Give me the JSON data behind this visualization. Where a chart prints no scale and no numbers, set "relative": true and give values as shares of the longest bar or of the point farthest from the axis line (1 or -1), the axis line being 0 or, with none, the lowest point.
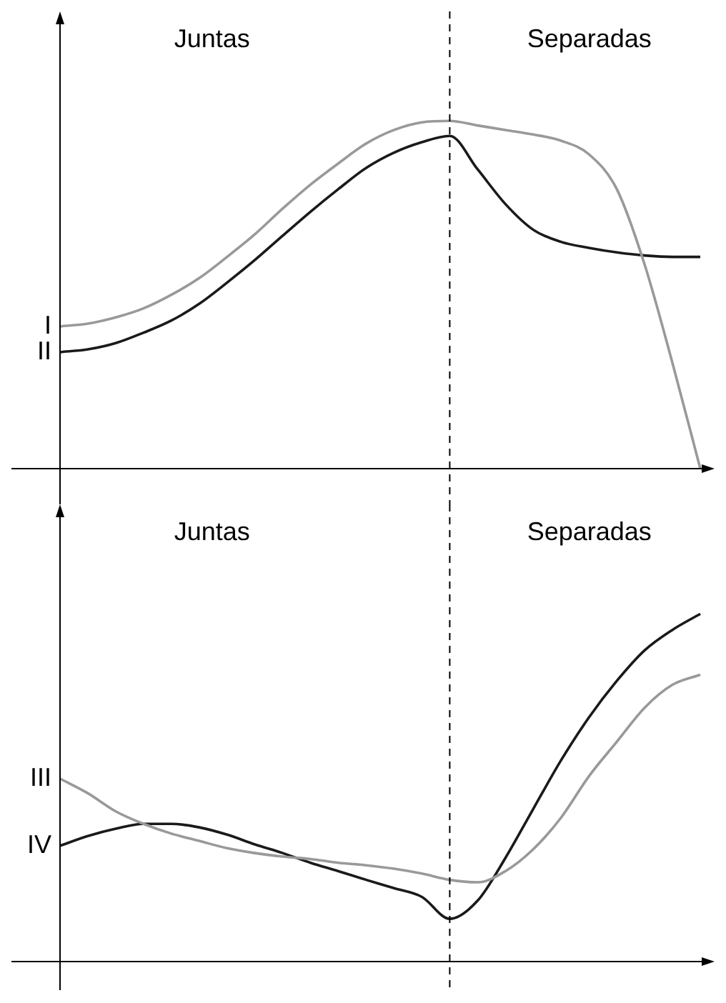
{
  "chart_data": [
    {
      "type": "line",
      "relative": true,
      "categories": [
        null,
        null,
        null,
        null,
        null,
        null,
        null,
        null,
        null,
        null,
        null,
        null,
        null,
        null,
        null,
        null,
        null,
        null,
        null,
        null,
        null,
        null,
        null,
        null
      ],
      "series": [
        {
          "name": "I",
          "color": "#999999",
          "values": [
            0.409,
            0.417,
            0.435,
            0.461,
            0.5,
            0.548,
            0.609,
            0.674,
            0.748,
            0.817,
            0.878,
            0.935,
            0.974,
            0.996,
            1,
            0.987,
            0.974,
            0.961,
            0.943,
            0.904,
            0.804,
            0.587,
            0.304,
            0
          ]
        },
        {
          "name": "II",
          "color": "#1a1a1a",
          "values": [
            0.335,
            0.343,
            0.361,
            0.391,
            0.426,
            0.474,
            0.535,
            0.6,
            0.67,
            0.739,
            0.804,
            0.865,
            0.909,
            0.939,
            0.957,
            0.861,
            0.761,
            0.687,
            0.652,
            0.635,
            0.622,
            0.613,
            0.609,
            0.609
          ]
        }
      ],
      "annotations": [
        "Juntas",
        "Separadas"
      ],
      "legend": false,
      "marker": "none",
      "line_style": "solid"
    },
    {
      "type": "line",
      "relative": true,
      "categories": [
        null,
        null,
        null,
        null,
        null,
        null,
        null,
        null,
        null,
        null,
        null,
        null,
        null,
        null,
        null,
        null,
        null,
        null,
        null,
        null,
        null,
        null,
        null,
        null
      ],
      "series": [
        {
          "name": "III",
          "color": "#999999",
          "values": [
            0.526,
            0.484,
            0.432,
            0.396,
            0.368,
            0.347,
            0.326,
            0.312,
            0.302,
            0.295,
            0.284,
            0.277,
            0.267,
            0.253,
            0.235,
            0.228,
            0.26,
            0.323,
            0.414,
            0.533,
            0.632,
            0.73,
            0.796,
            0.825
          ]
        },
        {
          "name": "IV",
          "color": "#1a1a1a",
          "values": [
            0.333,
            0.361,
            0.382,
            0.396,
            0.396,
            0.386,
            0.365,
            0.337,
            0.312,
            0.284,
            0.26,
            0.235,
            0.211,
            0.186,
            0.123,
            0.175,
            0.298,
            0.439,
            0.579,
            0.702,
            0.807,
            0.895,
            0.954,
            1
          ]
        }
      ],
      "annotations": [
        "Juntas",
        "Separadas"
      ],
      "legend": false,
      "marker": "none",
      "line_style": "solid"
    }
  ]
}
